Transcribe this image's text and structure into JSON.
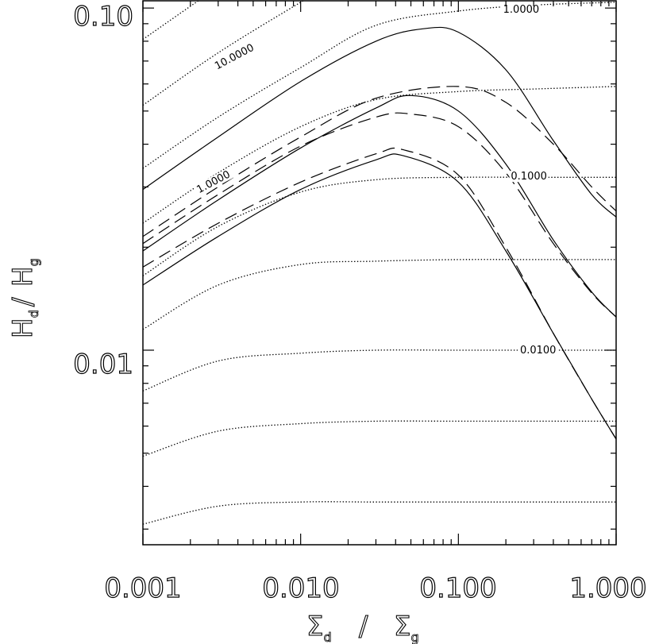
{
  "chart_data": {
    "type": "line",
    "x_scale": "log",
    "y_scale": "log",
    "xlim": [
      0.001,
      1.0
    ],
    "ylim": [
      0.0027,
      0.105
    ],
    "x_ticks": [
      "0.001",
      "0.010",
      "0.100",
      "1.000"
    ],
    "y_ticks": [
      "0.10",
      "0.01"
    ],
    "xlabel": {
      "main": "Σ",
      "sub": "d",
      "sep": "/",
      "main2": "Σ",
      "sub2": "g"
    },
    "ylabel": {
      "main": "H",
      "sub": "d",
      "sep": "/",
      "main2": "H",
      "sub2": "g"
    },
    "series": [
      {
        "style": "solid",
        "x": [
          0.001,
          0.003,
          0.01,
          0.03,
          0.06,
          0.1,
          0.2,
          0.4,
          0.7,
          1.0
        ],
        "y": [
          0.0295,
          0.042,
          0.061,
          0.08,
          0.087,
          0.085,
          0.066,
          0.041,
          0.0285,
          0.0245
        ]
      },
      {
        "style": "solid",
        "x": [
          0.001,
          0.003,
          0.01,
          0.03,
          0.05,
          0.1,
          0.2,
          0.4,
          0.7,
          1.0
        ],
        "y": [
          0.0195,
          0.0275,
          0.039,
          0.051,
          0.0555,
          0.05,
          0.035,
          0.021,
          0.0148,
          0.0125
        ]
      },
      {
        "style": "solid",
        "x": [
          0.001,
          0.003,
          0.01,
          0.03,
          0.045,
          0.1,
          0.2,
          0.4,
          0.7,
          1.0
        ],
        "y": [
          0.0155,
          0.0215,
          0.0295,
          0.036,
          0.037,
          0.031,
          0.0195,
          0.0112,
          0.0072,
          0.0055
        ]
      },
      {
        "style": "dashed",
        "x": [
          0.001,
          0.003,
          0.01,
          0.03,
          0.1,
          0.2,
          0.4,
          0.7,
          1.0
        ],
        "y": [
          0.0215,
          0.03,
          0.042,
          0.0545,
          0.059,
          0.053,
          0.04,
          0.03,
          0.0255
        ]
      },
      {
        "style": "dashed",
        "x": [
          0.001,
          0.003,
          0.01,
          0.03,
          0.05,
          0.1,
          0.2,
          0.4,
          0.7,
          1.0
        ],
        "y": [
          0.0205,
          0.0285,
          0.0395,
          0.048,
          0.049,
          0.045,
          0.033,
          0.0205,
          0.0147,
          0.0125
        ]
      },
      {
        "style": "dashed",
        "x": [
          0.001,
          0.003,
          0.01,
          0.03,
          0.045,
          0.1,
          0.2,
          0.4,
          0.7,
          1.0
        ],
        "y": [
          0.0175,
          0.0235,
          0.031,
          0.0375,
          0.0385,
          0.0325,
          0.02,
          0.0112,
          0.0072,
          0.0055
        ]
      }
    ],
    "contours": [
      {
        "x": [
          0.001,
          0.003,
          0.01,
          0.03,
          0.1,
          0.3,
          1.0
        ],
        "y": [
          0.081,
          0.115,
          0.165,
          0.22,
          0.28,
          0.34,
          0.38
        ]
      },
      {
        "x": [
          0.001,
          0.003,
          0.01,
          0.03,
          0.1,
          0.3,
          1.0
        ],
        "y": [
          0.052,
          0.074,
          0.104,
          0.14,
          0.175,
          0.205,
          0.225
        ]
      },
      {
        "x": [
          0.001,
          0.003,
          0.01,
          0.03,
          0.1,
          0.3,
          1.0
        ],
        "y": [
          0.034,
          0.048,
          0.067,
          0.089,
          0.098,
          0.102,
          0.104
        ],
        "label": "1.0000",
        "label_x": 0.25,
        "label_y": 0.099
      },
      {
        "x": [
          0.001,
          0.003,
          0.01,
          0.03,
          0.1,
          0.3,
          1.0
        ],
        "y": [
          0.0235,
          0.033,
          0.045,
          0.054,
          0.057,
          0.058,
          0.059
        ]
      },
      {
        "x": [
          0.001,
          0.003,
          0.01,
          0.03,
          0.1,
          0.3,
          1.0
        ],
        "y": [
          0.0165,
          0.023,
          0.029,
          0.0315,
          0.032,
          0.032,
          0.032
        ],
        "label": "0.1000",
        "label_x": 0.28,
        "label_y": 0.0322
      },
      {
        "x": [
          0.001,
          0.003,
          0.01,
          0.03,
          0.1,
          0.3,
          1.0
        ],
        "y": [
          0.0115,
          0.0155,
          0.0178,
          0.0182,
          0.0184,
          0.0184,
          0.0184
        ]
      },
      {
        "x": [
          0.001,
          0.003,
          0.01,
          0.03,
          0.1,
          0.3,
          1.0
        ],
        "y": [
          0.0076,
          0.0093,
          0.0098,
          0.01,
          0.01,
          0.01,
          0.01
        ],
        "label": "0.0100",
        "label_x": 0.32,
        "label_y": 0.01
      },
      {
        "x": [
          0.001,
          0.003,
          0.01,
          0.03,
          0.1,
          0.3,
          1.0
        ],
        "y": [
          0.0049,
          0.0058,
          0.0061,
          0.0062,
          0.0062,
          0.0062,
          0.0062
        ]
      },
      {
        "x": [
          0.001,
          0.003,
          0.01,
          0.03,
          0.1,
          0.3,
          1.0
        ],
        "y": [
          0.0031,
          0.0035,
          0.0036,
          0.0036,
          0.0036,
          0.0036,
          0.0036
        ]
      }
    ],
    "extra_labels": [
      {
        "text": "10.0000",
        "x": 0.0038,
        "y": 0.072
      },
      {
        "text": "1.0000",
        "x": 0.0028,
        "y": 0.031
      }
    ]
  }
}
